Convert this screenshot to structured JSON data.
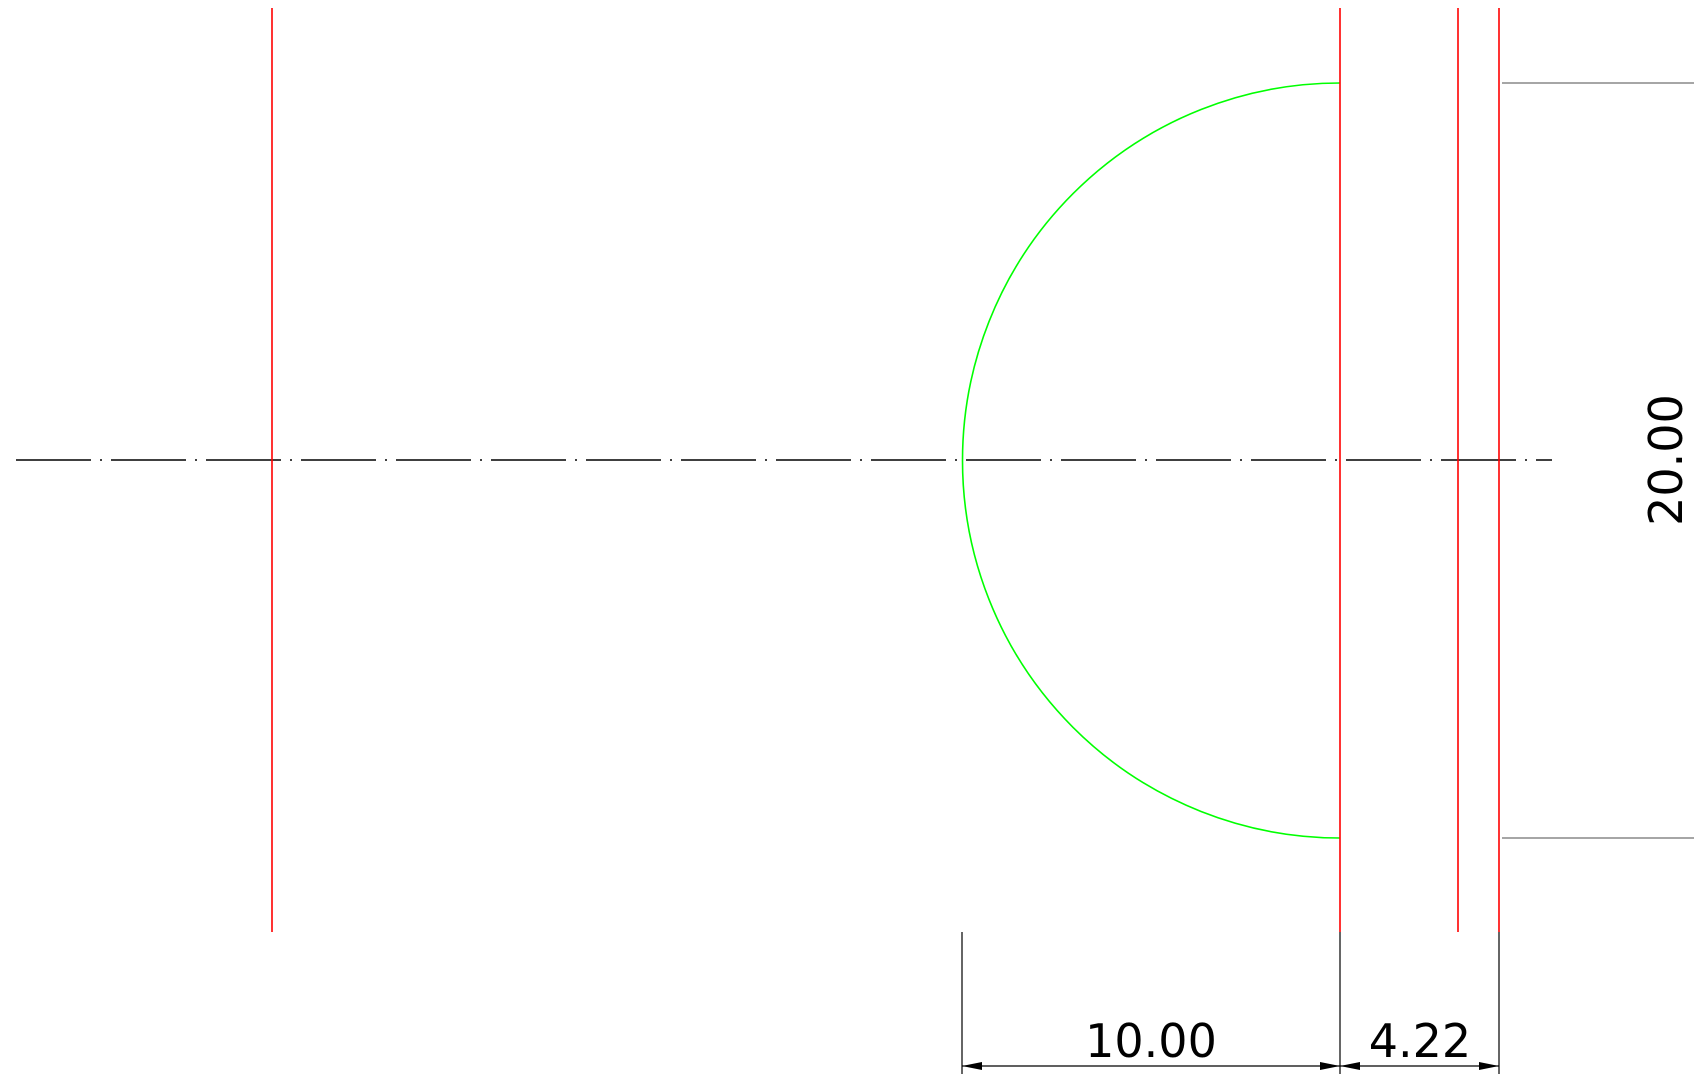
{
  "drawing": {
    "dimensions": [
      {
        "id": "dim-horizontal-left",
        "text": "10.00"
      },
      {
        "id": "dim-horizontal-right",
        "text": "4.22"
      },
      {
        "id": "dim-vertical",
        "text": "20.00"
      }
    ],
    "colors": {
      "construction_lines": "#ff0000",
      "arc": "#00ff00",
      "centerline": "#000000",
      "dimension_lines": "#000000",
      "extension_lines": "#888888"
    }
  }
}
